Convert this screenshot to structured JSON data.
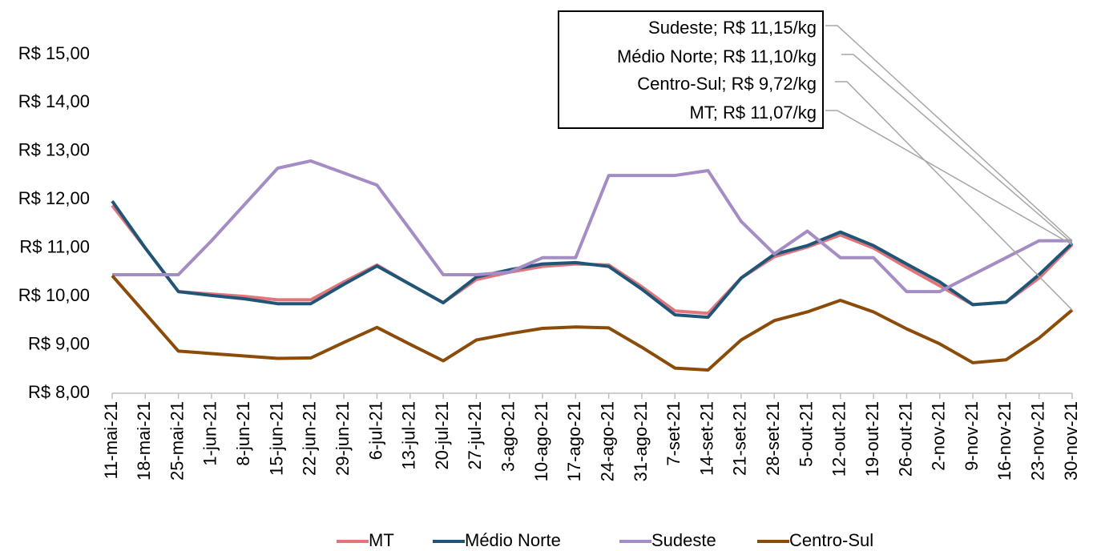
{
  "chart_data": {
    "type": "line",
    "categories": [
      "11-mai-21",
      "18-mai-21",
      "25-mai-21",
      "1-jun-21",
      "8-jun-21",
      "15-jun-21",
      "22-jun-21",
      "29-jun-21",
      "6-jul-21",
      "13-jul-21",
      "20-jul-21",
      "27-jul-21",
      "3-ago-21",
      "10-ago-21",
      "17-ago-21",
      "24-ago-21",
      "31-ago-21",
      "7-set-21",
      "14-set-21",
      "21-set-21",
      "28-set-21",
      "5-out-21",
      "12-out-21",
      "19-out-21",
      "26-out-21",
      "2-nov-21",
      "9-nov-21",
      "16-nov-21",
      "23-nov-21",
      "30-nov-21"
    ],
    "series": [
      {
        "name": "MT",
        "color": "#e0767c",
        "values": [
          11.88,
          11.0,
          10.1,
          10.05,
          10.0,
          9.93,
          9.93,
          10.3,
          10.65,
          10.25,
          9.87,
          10.35,
          10.5,
          10.62,
          10.67,
          10.65,
          10.2,
          9.7,
          9.65,
          10.38,
          10.82,
          11.02,
          11.27,
          11.0,
          10.6,
          10.22,
          9.83,
          9.88,
          10.38,
          11.07
        ]
      },
      {
        "name": "Médio Norte",
        "color": "#1f5577",
        "values": [
          11.97,
          11.0,
          10.1,
          10.02,
          9.95,
          9.85,
          9.85,
          10.25,
          10.63,
          10.25,
          9.87,
          10.4,
          10.55,
          10.67,
          10.7,
          10.62,
          10.15,
          9.62,
          9.57,
          10.38,
          10.87,
          11.05,
          11.33,
          11.05,
          10.67,
          10.3,
          9.83,
          9.88,
          10.45,
          11.1
        ]
      },
      {
        "name": "Sudeste",
        "color": "#a48cc4",
        "values": [
          10.45,
          10.45,
          10.45,
          11.15,
          11.9,
          12.65,
          12.8,
          12.55,
          12.3,
          11.38,
          10.45,
          10.45,
          10.5,
          10.8,
          10.8,
          12.5,
          12.5,
          12.5,
          12.6,
          11.55,
          10.88,
          11.35,
          10.8,
          10.8,
          10.1,
          10.1,
          10.45,
          10.8,
          11.15,
          11.15
        ]
      },
      {
        "name": "Centro-Sul",
        "color": "#8b4c0a",
        "values": [
          10.43,
          9.65,
          8.87,
          8.82,
          8.77,
          8.72,
          8.73,
          9.05,
          9.36,
          9.01,
          8.67,
          9.1,
          9.23,
          9.34,
          9.37,
          9.35,
          8.95,
          8.52,
          8.48,
          9.1,
          9.5,
          9.68,
          9.92,
          9.68,
          9.33,
          9.02,
          8.63,
          8.69,
          9.14,
          9.72
        ]
      }
    ],
    "ylim": [
      8,
      15
    ],
    "yticks": [
      {
        "value": 8,
        "label": "R$ 8,00"
      },
      {
        "value": 9,
        "label": "R$ 9,00"
      },
      {
        "value": 10,
        "label": "R$ 10,00"
      },
      {
        "value": 11,
        "label": "R$ 11,00"
      },
      {
        "value": 12,
        "label": "R$ 12,00"
      },
      {
        "value": 13,
        "label": "R$ 13,00"
      },
      {
        "value": 14,
        "label": "R$ 14,00"
      },
      {
        "value": 15,
        "label": "R$ 15,00"
      }
    ],
    "annotations": [
      "Sudeste; R$ 11,15/kg",
      "Médio Norte; R$ 11,10/kg",
      "Centro-Sul; R$ 9,72/kg",
      "MT; R$ 11,07/kg"
    ],
    "legend": "bottom"
  }
}
